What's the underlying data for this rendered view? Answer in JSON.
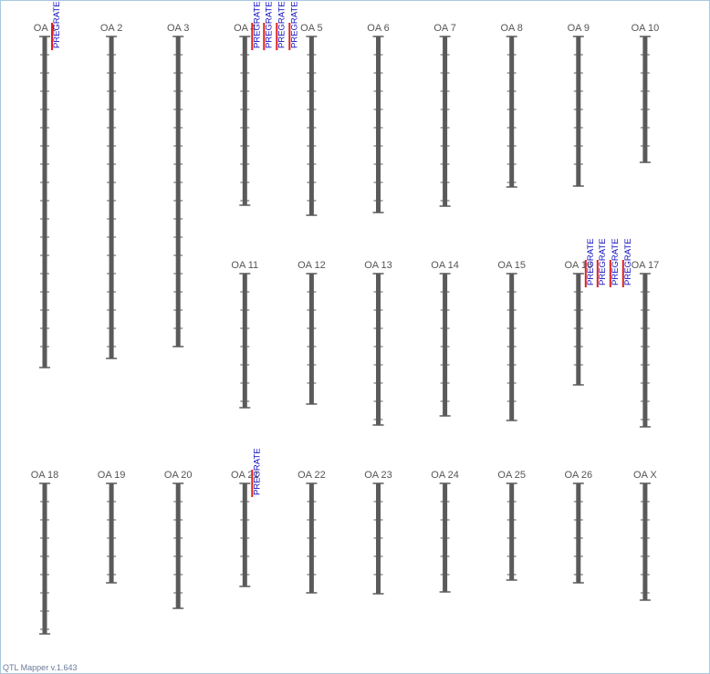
{
  "chromosomes": [
    {
      "label": "OA 1",
      "qtls": [
        "PREGRATE"
      ]
    },
    {
      "label": "OA 2",
      "qtls": []
    },
    {
      "label": "OA 3",
      "qtls": []
    },
    {
      "label": "OA 4",
      "qtls": [
        "PREGRATE",
        "PREGRATE",
        "PREGRATE",
        "PREGRATE"
      ]
    },
    {
      "label": "OA 5",
      "qtls": []
    },
    {
      "label": "OA 6",
      "qtls": []
    },
    {
      "label": "OA 7",
      "qtls": []
    },
    {
      "label": "OA 8",
      "qtls": []
    },
    {
      "label": "OA 9",
      "qtls": []
    },
    {
      "label": "OA 10",
      "qtls": []
    },
    {
      "label": "OA 11",
      "qtls": []
    },
    {
      "label": "OA 12",
      "qtls": []
    },
    {
      "label": "OA 13",
      "qtls": []
    },
    {
      "label": "OA 14",
      "qtls": []
    },
    {
      "label": "OA 15",
      "qtls": []
    },
    {
      "label": "OA 16",
      "qtls": [
        "PREGRATE",
        "PREGRATE",
        "PREGRATE",
        "PREGRATE"
      ]
    },
    {
      "label": "OA 17",
      "qtls": []
    },
    {
      "label": "OA 18",
      "qtls": []
    },
    {
      "label": "OA 19",
      "qtls": []
    },
    {
      "label": "OA 20",
      "qtls": []
    },
    {
      "label": "OA 21",
      "qtls": [
        "PREGRATE"
      ]
    },
    {
      "label": "OA 22",
      "qtls": []
    },
    {
      "label": "OA 23",
      "qtls": []
    },
    {
      "label": "OA 24",
      "qtls": []
    },
    {
      "label": "OA 25",
      "qtls": []
    },
    {
      "label": "OA 26",
      "qtls": []
    },
    {
      "label": "OA X",
      "qtls": []
    }
  ],
  "footer": "QTL Mapper v.1.643"
}
